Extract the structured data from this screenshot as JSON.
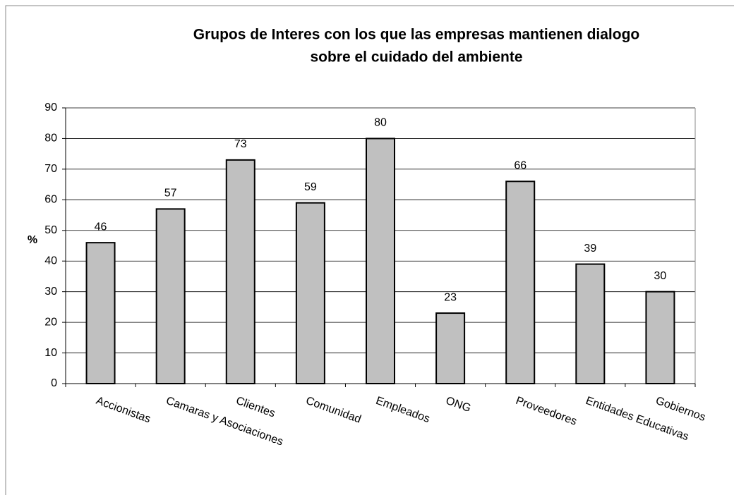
{
  "chart_data": {
    "type": "bar",
    "title": [
      "Grupos de Interes con los que las empresas mantienen dialogo",
      "sobre el cuidado del ambiente"
    ],
    "y_label": "%",
    "categories": [
      "Accionistas",
      "Camaras y Asociaciones",
      "Clientes",
      "Comunidad",
      "Empleados",
      "ONG",
      "Proveedores",
      "Entidades Educativas",
      "Gobiernos"
    ],
    "values": [
      46,
      57,
      73,
      59,
      80,
      23,
      66,
      39,
      30
    ],
    "color": "#c0c0c0",
    "ylim": [
      0,
      90
    ],
    "yticks": [
      0,
      10,
      20,
      30,
      40,
      50,
      60,
      70,
      80,
      90
    ],
    "grid": true
  }
}
